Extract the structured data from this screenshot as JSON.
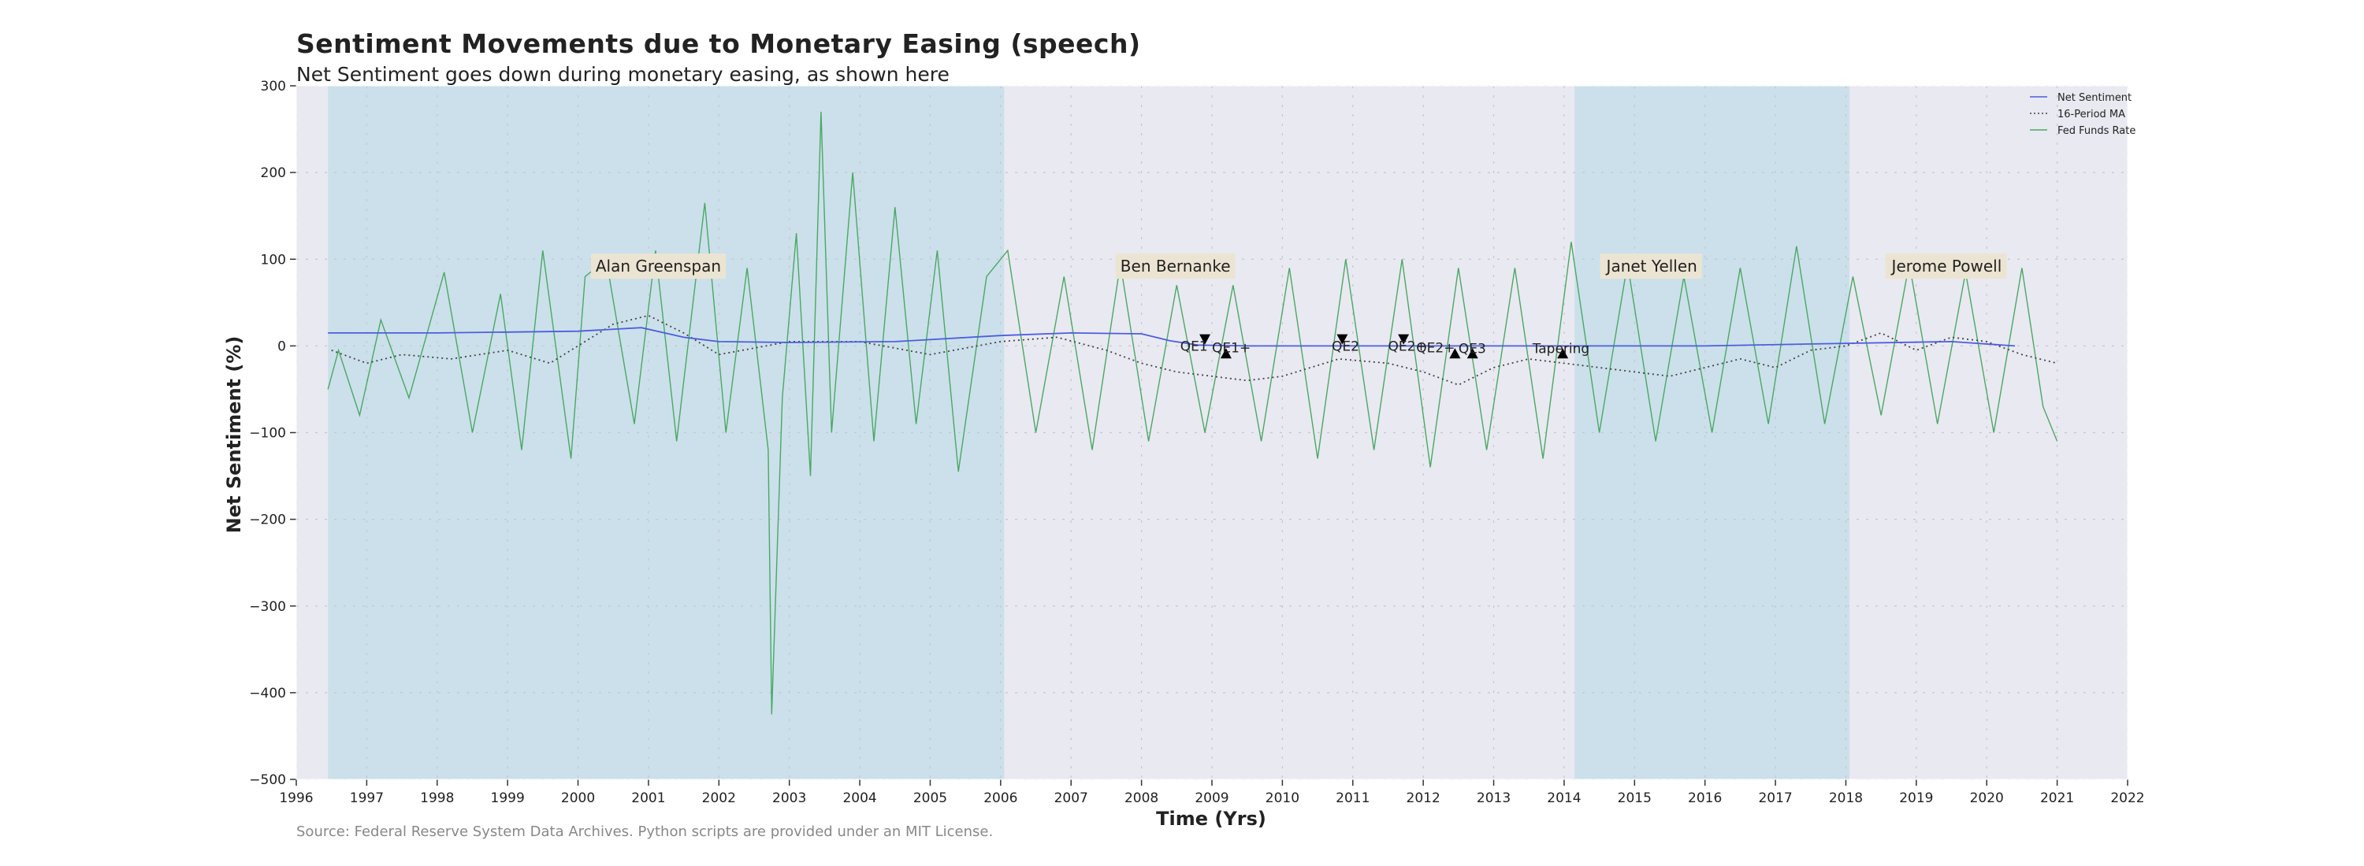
{
  "chart_data": {
    "type": "line",
    "title": "Sentiment Movements due to Monetary Easing (speech)",
    "subtitle": "Net Sentiment goes down during monetary easing, as shown here",
    "source": "Source: Federal Reserve System Data Archives. Python scripts are provided under an MIT License.",
    "xlabel": "Time (Yrs)",
    "ylabel": "Net Sentiment (%)",
    "xlim": [
      1996,
      2022
    ],
    "ylim": [
      -500,
      300
    ],
    "xticks": [
      "1996",
      "1997",
      "1998",
      "1999",
      "2000",
      "2001",
      "2002",
      "2003",
      "2004",
      "2005",
      "2006",
      "2007",
      "2008",
      "2009",
      "2010",
      "2011",
      "2012",
      "2013",
      "2014",
      "2015",
      "2016",
      "2017",
      "2018",
      "2019",
      "2020",
      "2021",
      "2022"
    ],
    "yticks": [
      "300",
      "200",
      "100",
      "0",
      "−100",
      "−200",
      "−300",
      "−400",
      "−500"
    ],
    "grid": true,
    "legend_position": "top-right",
    "series": [
      {
        "name": "Net Sentiment",
        "color": "#4c5ee0",
        "style": "solid",
        "x": [
          1996.45,
          1998.0,
          2000.0,
          2000.9,
          2001.5,
          2002.0,
          2003.0,
          2004.5,
          2006.0,
          2007.0,
          2008.0,
          2008.4,
          2008.8,
          2009.5,
          2013.0,
          2016.0,
          2018.0,
          2019.5,
          2020.4
        ],
        "y": [
          15,
          15,
          17,
          21,
          10,
          5,
          4,
          5,
          12,
          15,
          14,
          6,
          1,
          0,
          0,
          0,
          3,
          5,
          0
        ]
      },
      {
        "name": "16-Period MA",
        "color": "#444444",
        "style": "dotted",
        "x": [
          1996.5,
          1997.0,
          1997.5,
          1998.2,
          1999.0,
          1999.6,
          2000.5,
          2001.0,
          2001.5,
          2002.0,
          2003.0,
          2004.0,
          2005.0,
          2006.0,
          2006.8,
          2007.5,
          2008.0,
          2008.5,
          2009.0,
          2009.5,
          2010.0,
          2010.8,
          2011.5,
          2012.0,
          2012.5,
          2013.0,
          2013.5,
          2014.0,
          2014.5,
          2015.0,
          2015.5,
          2016.0,
          2016.5,
          2017.0,
          2017.5,
          2018.0,
          2018.5,
          2019.0,
          2019.5,
          2020.0,
          2020.5,
          2021.0
        ],
        "y": [
          -5,
          -20,
          -10,
          -15,
          -5,
          -20,
          25,
          35,
          15,
          -10,
          5,
          5,
          -10,
          5,
          10,
          -5,
          -20,
          -30,
          -35,
          -40,
          -35,
          -15,
          -20,
          -30,
          -45,
          -25,
          -15,
          -20,
          -25,
          -30,
          -35,
          -25,
          -15,
          -25,
          -5,
          0,
          15,
          -5,
          10,
          5,
          -10,
          -20
        ]
      },
      {
        "name": "Fed Funds Rate",
        "color": "#4aa864",
        "style": "solid",
        "x": [
          1996.45,
          1996.6,
          1996.9,
          1997.2,
          1997.6,
          1998.1,
          1998.5,
          1998.9,
          1999.2,
          1999.5,
          1999.9,
          2000.1,
          2000.4,
          2000.8,
          2001.1,
          2001.4,
          2001.8,
          2002.1,
          2002.4,
          2002.7,
          2002.75,
          2002.9,
          2003.1,
          2003.3,
          2003.45,
          2003.6,
          2003.9,
          2004.2,
          2004.5,
          2004.8,
          2005.1,
          2005.4,
          2005.8,
          2006.1,
          2006.5,
          2006.9,
          2007.3,
          2007.7,
          2008.1,
          2008.5,
          2008.9,
          2009.3,
          2009.7,
          2010.1,
          2010.5,
          2010.9,
          2011.3,
          2011.7,
          2012.1,
          2012.5,
          2012.9,
          2013.3,
          2013.7,
          2014.1,
          2014.5,
          2014.9,
          2015.3,
          2015.7,
          2016.1,
          2016.5,
          2016.9,
          2017.3,
          2017.7,
          2018.1,
          2018.5,
          2018.9,
          2019.3,
          2019.7,
          2020.1,
          2020.5,
          2020.8,
          2021.0
        ],
        "y": [
          -50,
          -5,
          -80,
          30,
          -60,
          85,
          -100,
          60,
          -120,
          110,
          -130,
          80,
          100,
          -90,
          110,
          -110,
          165,
          -100,
          90,
          -120,
          -425,
          -60,
          130,
          -150,
          270,
          -100,
          200,
          -110,
          160,
          -90,
          110,
          -145,
          80,
          110,
          -100,
          80,
          -120,
          95,
          -110,
          70,
          -100,
          70,
          -110,
          90,
          -130,
          100,
          -120,
          100,
          -140,
          90,
          -120,
          90,
          -130,
          120,
          -100,
          95,
          -110,
          80,
          -100,
          90,
          -90,
          115,
          -90,
          80,
          -80,
          95,
          -90,
          85,
          -100,
          90,
          -70,
          -110
        ]
      }
    ],
    "shaded_periods": [
      {
        "label": "Alan Greenspan",
        "start": 1996.45,
        "end": 2006.05,
        "shaded": true
      },
      {
        "label": "Ben Bernanke",
        "start": 2006.05,
        "end": 2014.15,
        "shaded": false
      },
      {
        "label": "Janet Yellen",
        "start": 2014.15,
        "end": 2018.05,
        "shaded": true
      },
      {
        "label": "Jerome Powell",
        "start": 2018.05,
        "end": 2022,
        "shaded": false
      }
    ],
    "chair_labels": [
      {
        "text": "Alan Greenspan",
        "x": 2000.25,
        "y": 92
      },
      {
        "text": "Ben Bernanke",
        "x": 2007.7,
        "y": 92
      },
      {
        "text": "Janet Yellen",
        "x": 2014.6,
        "y": 92
      },
      {
        "text": "Jerome Powell",
        "x": 2018.65,
        "y": 92
      }
    ],
    "events": [
      {
        "text": "QE1",
        "x": 2008.55,
        "y": 0,
        "marker": "down",
        "mx": 2008.9,
        "my": 8
      },
      {
        "text": "QE1+",
        "x": 2009.0,
        "y": -2,
        "marker": "up",
        "mx": 2009.2,
        "my": -9
      },
      {
        "text": "QE2",
        "x": 2010.7,
        "y": 0,
        "marker": "down",
        "mx": 2010.85,
        "my": 8
      },
      {
        "text": "QE2+",
        "x": 2011.5,
        "y": 0,
        "marker": "down",
        "mx": 2011.72,
        "my": 8
      },
      {
        "text": "QE2+",
        "x": 2011.9,
        "y": -2,
        "marker": "up",
        "mx": 2012.45,
        "my": -9
      },
      {
        "text": "QE3",
        "x": 2012.5,
        "y": -3,
        "marker": "up",
        "mx": 2012.7,
        "my": -9
      },
      {
        "text": "Tapering",
        "x": 2013.55,
        "y": -3,
        "marker": "up",
        "mx": 2013.98,
        "my": -9
      }
    ],
    "colors": {
      "plot_background": "#e9e9f1",
      "shade": "#cbe0ea",
      "label_box": "#ece4d2",
      "grid": "#c6c6d2"
    }
  }
}
